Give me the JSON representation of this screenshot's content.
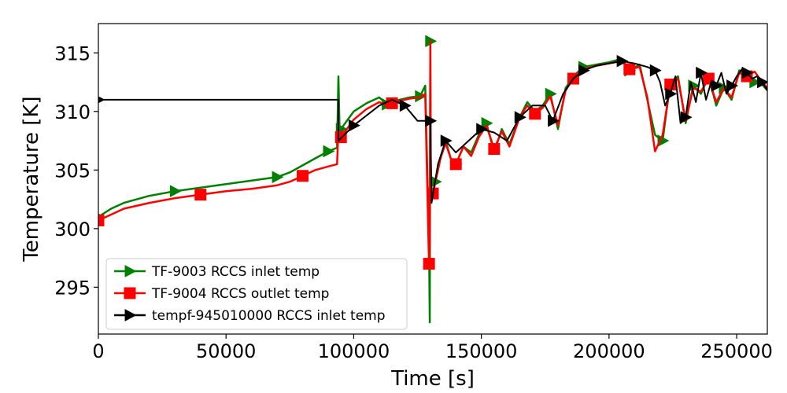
{
  "chart_data": {
    "type": "line",
    "xlabel": "Time [s]",
    "ylabel": "Temperature [K]",
    "xlim": [
      0,
      262000
    ],
    "ylim": [
      291,
      317.5
    ],
    "xticks": [
      0,
      50000,
      100000,
      150000,
      200000,
      250000
    ],
    "yticks": [
      295,
      300,
      305,
      310,
      315
    ],
    "legend_position": "lower-left",
    "grid": false,
    "series": [
      {
        "name": "TF-9003 RCCS inlet temp",
        "color": "#008000",
        "marker": "triangle-right",
        "x": [
          0,
          5000,
          10000,
          20000,
          30000,
          40000,
          50000,
          60000,
          70000,
          75000,
          80000,
          85000,
          90000,
          93500,
          94000,
          94500,
          95000,
          100000,
          105000,
          110000,
          113000,
          115000,
          118000,
          122000,
          126000,
          128000,
          129500,
          129800,
          130000,
          130200,
          130500,
          131000,
          132000,
          134000,
          136000,
          138000,
          140000,
          143000,
          146000,
          149000,
          152000,
          155000,
          158000,
          161000,
          165000,
          168000,
          171000,
          174000,
          177000,
          180000,
          183000,
          186000,
          190000,
          195000,
          200000,
          205000,
          208000,
          212000,
          215000,
          218000,
          221000,
          224000,
          227000,
          230000,
          233000,
          236000,
          239000,
          242000,
          245000,
          248000,
          251000,
          254000,
          257000,
          260000,
          262000
        ],
        "y": [
          301,
          301.7,
          302.2,
          302.8,
          303.2,
          303.5,
          303.8,
          304.1,
          304.4,
          304.8,
          305.4,
          306,
          306.6,
          306.9,
          313,
          308,
          308.5,
          310,
          310.7,
          311.2,
          310.6,
          310.8,
          311,
          311.2,
          311.3,
          312.2,
          299,
          292,
          316,
          303.5,
          302.5,
          303,
          304,
          306,
          307.5,
          306,
          305.5,
          307,
          306.5,
          308,
          309,
          306.5,
          308.5,
          307.2,
          309.5,
          310.8,
          310,
          310.5,
          311.5,
          308.5,
          312,
          313,
          313.8,
          314,
          314.2,
          314.5,
          313.5,
          314,
          311,
          308,
          307.5,
          312.5,
          313,
          309,
          312.2,
          311.5,
          313,
          310.5,
          312,
          311,
          313.5,
          313,
          312.5,
          312.3,
          311.8
        ]
      },
      {
        "name": "TF-9004 RCCS outlet temp",
        "color": "#ff0000",
        "marker": "square",
        "x": [
          0,
          5000,
          10000,
          20000,
          30000,
          40000,
          50000,
          60000,
          70000,
          75000,
          80000,
          85000,
          90000,
          93500,
          94000,
          95000,
          100000,
          105000,
          110000,
          113000,
          115000,
          118000,
          122000,
          126000,
          128000,
          129500,
          129800,
          130000,
          130200,
          130500,
          131000,
          132000,
          134000,
          136000,
          138000,
          140000,
          143000,
          146000,
          149000,
          152000,
          155000,
          158000,
          161000,
          165000,
          168000,
          171000,
          174000,
          177000,
          180000,
          183000,
          186000,
          190000,
          195000,
          200000,
          205000,
          208000,
          212000,
          215000,
          218000,
          221000,
          224000,
          227000,
          230000,
          233000,
          236000,
          239000,
          242000,
          245000,
          248000,
          251000,
          254000,
          257000,
          260000,
          262000
        ],
        "y": [
          300.7,
          301.2,
          301.7,
          302.2,
          302.6,
          302.9,
          303.2,
          303.4,
          303.7,
          304,
          304.5,
          305,
          305.3,
          305.5,
          308.5,
          307.8,
          309.3,
          310.2,
          310.8,
          310.5,
          310.7,
          310.9,
          311.1,
          311.2,
          311.5,
          297,
          299,
          316,
          303.5,
          302.5,
          303,
          304,
          306,
          307.3,
          306,
          305.5,
          307,
          306.2,
          307.8,
          308.8,
          306.8,
          308.3,
          307,
          309.5,
          310.5,
          309.8,
          310.3,
          311.3,
          308.8,
          311.8,
          312.8,
          313.6,
          313.9,
          314.1,
          314.3,
          313.6,
          313.8,
          311.2,
          306.6,
          308,
          312.3,
          312.8,
          309.2,
          312,
          311.7,
          312.8,
          310.8,
          312,
          311.2,
          313.3,
          313,
          313.4,
          312.5,
          312
        ]
      },
      {
        "name": "tempf-945010000 RCCS inlet temp",
        "color": "#000000",
        "marker": "triangle-right",
        "x": [
          0,
          94000,
          94000,
          100000,
          110000,
          115000,
          120000,
          125000,
          128000,
          130000,
          130500,
          133000,
          136000,
          140000,
          145000,
          150000,
          155000,
          160000,
          165000,
          170000,
          175000,
          178000,
          182000,
          186000,
          190000,
          195000,
          200000,
          205000,
          210000,
          215000,
          218000,
          220000,
          222000,
          224000,
          226000,
          228000,
          230000,
          232000,
          234000,
          236000,
          238000,
          240000,
          242000,
          244000,
          246000,
          248000,
          250000,
          252000,
          254000,
          256000,
          258000,
          260000,
          262000
        ],
        "y": [
          311,
          311,
          307.5,
          308.8,
          310.5,
          311,
          310.5,
          309.2,
          309.2,
          309.2,
          302.2,
          305.5,
          307.5,
          306.5,
          307.5,
          308.5,
          308.2,
          307.5,
          309.5,
          310.5,
          310.5,
          309.2,
          311.5,
          312.8,
          313.5,
          313.9,
          314.1,
          314.3,
          314.1,
          313.8,
          313.5,
          312.5,
          310.5,
          311.5,
          313,
          309,
          309.5,
          312.5,
          310.8,
          313.3,
          311,
          312.5,
          312.2,
          313.3,
          311.5,
          312.2,
          313,
          313.6,
          313.3,
          312.8,
          313,
          312.5,
          311.8
        ]
      }
    ]
  }
}
